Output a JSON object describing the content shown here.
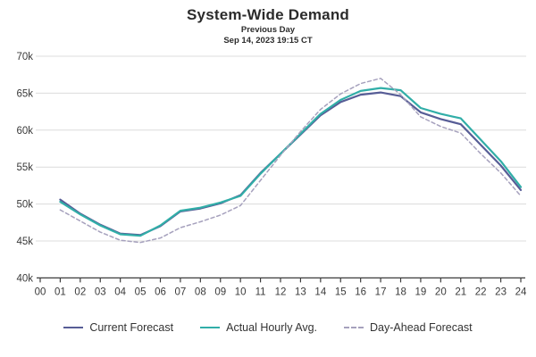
{
  "header": {
    "title": "System-Wide Demand",
    "subtitle": "Previous Day",
    "timestamp": "Sep 14, 2023 19:15 CT"
  },
  "chart_data": {
    "type": "line",
    "title": "System-Wide Demand",
    "xlabel": "",
    "ylabel": "",
    "x_unit": "hour ending",
    "y_unit": "MW (thousands)",
    "xlim": [
      0,
      24
    ],
    "ylim": [
      40,
      70
    ],
    "grid": "horizontal",
    "legend_position": "bottom",
    "x_tick_labels": [
      "00",
      "01",
      "02",
      "03",
      "04",
      "05",
      "06",
      "07",
      "08",
      "09",
      "10",
      "11",
      "12",
      "13",
      "14",
      "15",
      "16",
      "17",
      "18",
      "19",
      "20",
      "21",
      "22",
      "23",
      "24"
    ],
    "y_tick_values": [
      40,
      45,
      50,
      55,
      60,
      65,
      70
    ],
    "y_tick_labels": [
      "40k",
      "45k",
      "50k",
      "55k",
      "60k",
      "65k",
      "70k"
    ],
    "hours": [
      1,
      2,
      3,
      4,
      5,
      6,
      7,
      8,
      9,
      10,
      11,
      12,
      13,
      14,
      15,
      16,
      17,
      18,
      19,
      20,
      21,
      22,
      23,
      24
    ],
    "series": [
      {
        "name": "Current Forecast",
        "color": "#575d96",
        "dash": "solid",
        "values": [
          50.6,
          48.7,
          47.2,
          46.0,
          45.8,
          47.0,
          49.0,
          49.4,
          50.1,
          51.2,
          54.2,
          56.8,
          59.4,
          62.0,
          63.8,
          64.8,
          65.1,
          64.6,
          62.4,
          61.5,
          60.8,
          58.0,
          55.2,
          51.9
        ]
      },
      {
        "name": "Actual Hourly Avg.",
        "color": "#31aea8",
        "dash": "solid",
        "values": [
          50.3,
          48.6,
          47.1,
          45.9,
          45.7,
          47.1,
          49.1,
          49.5,
          50.2,
          51.1,
          54.1,
          56.8,
          59.5,
          62.2,
          64.1,
          65.3,
          65.7,
          65.4,
          63.0,
          62.2,
          61.6,
          58.7,
          55.8,
          52.3
        ]
      },
      {
        "name": "Day-Ahead Forecast",
        "color": "#a6a1bd",
        "dash": "dashed",
        "values": [
          49.2,
          47.7,
          46.2,
          45.1,
          44.8,
          45.4,
          46.8,
          47.6,
          48.5,
          49.8,
          53.2,
          56.6,
          59.8,
          62.8,
          64.9,
          66.3,
          67.0,
          64.8,
          61.8,
          60.5,
          59.6,
          56.8,
          54.2,
          51.1
        ]
      }
    ],
    "colors": {
      "grid": "#dcdcdc",
      "axis": "#3c3c3c",
      "tick_text": "#3a3a3a"
    }
  }
}
